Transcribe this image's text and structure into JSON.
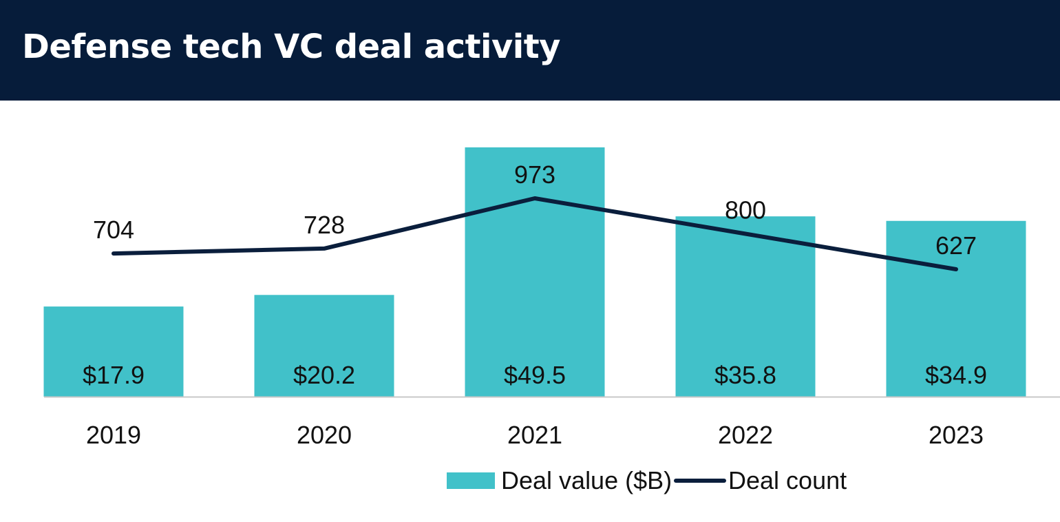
{
  "header": {
    "title": "Defense tech VC deal activity"
  },
  "colors": {
    "header_bg": "#061c3a",
    "bar": "#41c1c9",
    "line": "#0a1e3c",
    "axis": "#c8c8c8",
    "text": "#111111"
  },
  "chart_data": {
    "type": "bar",
    "categories": [
      "2019",
      "2020",
      "2021",
      "2022",
      "2023"
    ],
    "series": [
      {
        "name": "Deal value ($B)",
        "type": "bar",
        "values": [
          17.9,
          20.2,
          49.5,
          35.8,
          34.9
        ],
        "labels": [
          "$17.9",
          "$20.2",
          "$49.5",
          "$35.8",
          "$34.9"
        ]
      },
      {
        "name": "Deal count",
        "type": "line",
        "values": [
          704,
          728,
          973,
          800,
          627
        ],
        "labels": [
          "704",
          "728",
          "973",
          "800",
          "627"
        ]
      }
    ],
    "legend": {
      "position": "bottom",
      "entries": [
        "Deal value ($B)",
        "Deal count"
      ]
    },
    "grid": false
  }
}
